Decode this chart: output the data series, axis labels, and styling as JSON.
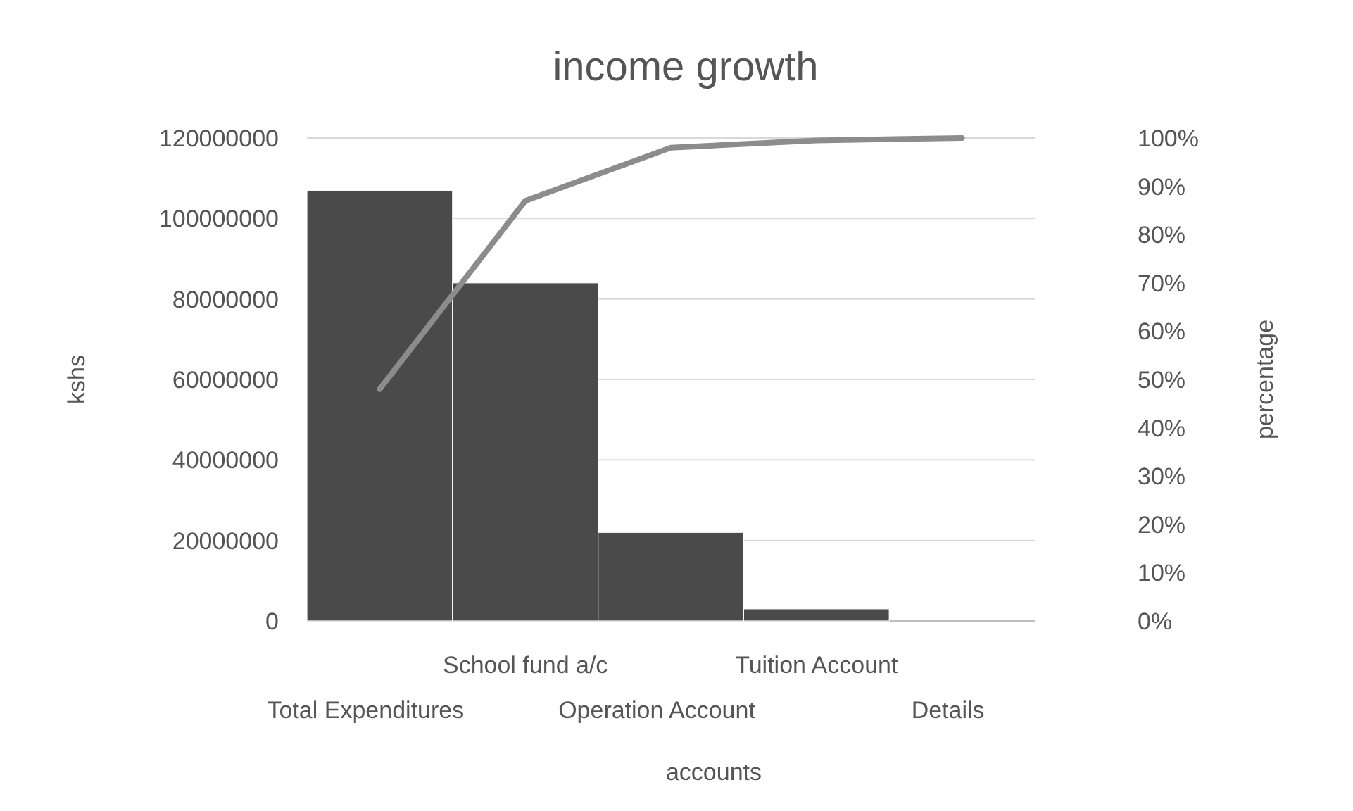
{
  "chart_data": {
    "type": "bar",
    "title": "income growth",
    "xlabel": "accounts",
    "ylabel": "kshs",
    "y2label": "percentage",
    "categories": [
      "Total Expenditures",
      "School fund a/c",
      "Operation Account",
      "Tuition Account",
      "Details"
    ],
    "series": [
      {
        "color": "#4a4a4a",
        "values": [
          107000000,
          84000000,
          22000000,
          3000000,
          0
        ]
      },
      {
        "type": "line",
        "axis": "y2",
        "color": "#8c8c8c",
        "values": [
          48,
          87,
          98,
          99.5,
          100
        ]
      }
    ],
    "ylim": [
      0,
      120000000
    ],
    "yticks": [
      0,
      20000000,
      40000000,
      60000000,
      80000000,
      100000000,
      120000000
    ],
    "y2lim": [
      0,
      100
    ],
    "y2ticks": [
      {
        "value": 0,
        "label": "0%"
      },
      {
        "value": 10,
        "label": "10%"
      },
      {
        "value": 20,
        "label": "20%"
      },
      {
        "value": 30,
        "label": "30%"
      },
      {
        "value": 40,
        "label": "40%"
      },
      {
        "value": 50,
        "label": "50%"
      },
      {
        "value": 60,
        "label": "60%"
      },
      {
        "value": 70,
        "label": "70%"
      },
      {
        "value": 80,
        "label": "80%"
      },
      {
        "value": 90,
        "label": "90%"
      },
      {
        "value": 100,
        "label": "100%"
      }
    ],
    "grid": "y",
    "marker": "none",
    "line_style": "solid"
  }
}
